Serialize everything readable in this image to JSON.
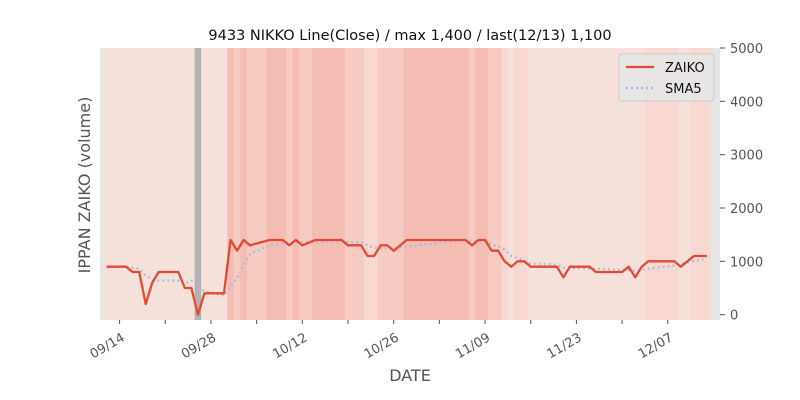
{
  "chart_data": {
    "type": "line",
    "title": "9433 NIKKO Line(Close) / max 1,400 / last(12/13) 1,100",
    "xlabel": "DATE",
    "ylabel": "IPPAN ZAIKO (volume)",
    "x_ticks": [
      "09/14",
      "09/21",
      "09/28",
      "10/05",
      "10/12",
      "10/19",
      "10/26",
      "11/02",
      "11/09",
      "11/16",
      "11/23",
      "11/30",
      "12/07"
    ],
    "x_tick_labels": [
      "09/14",
      "",
      "09/28",
      "",
      "10/12",
      "",
      "10/26",
      "",
      "11/09",
      "",
      "11/23",
      "",
      "12/07"
    ],
    "y_ticks": [
      0,
      1000,
      2000,
      3000,
      4000,
      5000
    ],
    "y_tick_labels": [
      "0",
      "1000",
      "2000",
      "3000",
      "4000",
      "5000"
    ],
    "xlim": [
      "09/11",
      "12/15"
    ],
    "ylim": [
      -100,
      5000
    ],
    "grid": false,
    "legend_position": "top-right",
    "background_note": "daily shaded columns (light to dark salmon by value band, gray on 09/26)",
    "series": [
      {
        "name": "ZAIKO",
        "color": "#E24A33",
        "style": "solid",
        "points": [
          [
            "09/12",
            900
          ],
          [
            "09/15",
            900
          ],
          [
            "09/16",
            800
          ],
          [
            "09/17",
            800
          ],
          [
            "09/18",
            200
          ],
          [
            "09/19",
            600
          ],
          [
            "09/20",
            800
          ],
          [
            "09/23",
            800
          ],
          [
            "09/24",
            500
          ],
          [
            "09/25",
            500
          ],
          [
            "09/26",
            0
          ],
          [
            "09/27",
            400
          ],
          [
            "09/30",
            400
          ],
          [
            "10/01",
            1400
          ],
          [
            "10/02",
            1200
          ],
          [
            "10/03",
            1400
          ],
          [
            "10/04",
            1300
          ],
          [
            "10/07",
            1400
          ],
          [
            "10/09",
            1400
          ],
          [
            "10/10",
            1300
          ],
          [
            "10/11",
            1400
          ],
          [
            "10/12",
            1300
          ],
          [
            "10/14",
            1400
          ],
          [
            "10/18",
            1400
          ],
          [
            "10/19",
            1300
          ],
          [
            "10/21",
            1300
          ],
          [
            "10/22",
            1100
          ],
          [
            "10/23",
            1100
          ],
          [
            "10/24",
            1300
          ],
          [
            "10/25",
            1300
          ],
          [
            "10/26",
            1200
          ],
          [
            "10/28",
            1400
          ],
          [
            "11/06",
            1400
          ],
          [
            "11/07",
            1300
          ],
          [
            "11/08",
            1400
          ],
          [
            "11/09",
            1400
          ],
          [
            "11/10",
            1200
          ],
          [
            "11/11",
            1200
          ],
          [
            "11/12",
            1000
          ],
          [
            "11/13",
            900
          ],
          [
            "11/14",
            1000
          ],
          [
            "11/15",
            1000
          ],
          [
            "11/16",
            900
          ],
          [
            "11/20",
            900
          ],
          [
            "11/21",
            700
          ],
          [
            "11/22",
            900
          ],
          [
            "11/25",
            900
          ],
          [
            "11/26",
            800
          ],
          [
            "11/30",
            800
          ],
          [
            "12/01",
            900
          ],
          [
            "12/02",
            700
          ],
          [
            "12/03",
            900
          ],
          [
            "12/04",
            1000
          ],
          [
            "12/08",
            1000
          ],
          [
            "12/09",
            900
          ],
          [
            "12/11",
            1100
          ],
          [
            "12/13",
            1100
          ]
        ]
      },
      {
        "name": "SMA5",
        "color": "#A5BDDB",
        "style": "dotted",
        "points": [
          [
            "09/12",
            900
          ],
          [
            "09/15",
            900
          ],
          [
            "09/16",
            880
          ],
          [
            "09/17",
            860
          ],
          [
            "09/18",
            740
          ],
          [
            "09/19",
            660
          ],
          [
            "09/20",
            640
          ],
          [
            "09/23",
            640
          ],
          [
            "09/24",
            580
          ],
          [
            "09/25",
            640
          ],
          [
            "09/26",
            520
          ],
          [
            "09/27",
            440
          ],
          [
            "09/30",
            360
          ],
          [
            "10/01",
            540
          ],
          [
            "10/02",
            680
          ],
          [
            "10/03",
            940
          ],
          [
            "10/04",
            1140
          ],
          [
            "10/07",
            1300
          ],
          [
            "10/09",
            1340
          ],
          [
            "10/10",
            1360
          ],
          [
            "10/11",
            1360
          ],
          [
            "10/12",
            1360
          ],
          [
            "10/14",
            1360
          ],
          [
            "10/18",
            1380
          ],
          [
            "10/19",
            1360
          ],
          [
            "10/21",
            1360
          ],
          [
            "10/22",
            1300
          ],
          [
            "10/23",
            1260
          ],
          [
            "10/24",
            1240
          ],
          [
            "10/25",
            1240
          ],
          [
            "10/26",
            1240
          ],
          [
            "10/28",
            1280
          ],
          [
            "11/06",
            1400
          ],
          [
            "11/07",
            1380
          ],
          [
            "11/08",
            1380
          ],
          [
            "11/09",
            1360
          ],
          [
            "11/10",
            1320
          ],
          [
            "11/11",
            1280
          ],
          [
            "11/12",
            1220
          ],
          [
            "11/13",
            1100
          ],
          [
            "11/14",
            1060
          ],
          [
            "11/15",
            1000
          ],
          [
            "11/16",
            960
          ],
          [
            "11/20",
            940
          ],
          [
            "11/21",
            880
          ],
          [
            "11/22",
            880
          ],
          [
            "11/25",
            860
          ],
          [
            "11/26",
            860
          ],
          [
            "11/30",
            840
          ],
          [
            "12/01",
            840
          ],
          [
            "12/02",
            820
          ],
          [
            "12/03",
            840
          ],
          [
            "12/04",
            860
          ],
          [
            "12/08",
            920
          ],
          [
            "12/09",
            960
          ],
          [
            "12/11",
            1000
          ],
          [
            "12/13",
            1060
          ]
        ]
      }
    ]
  }
}
